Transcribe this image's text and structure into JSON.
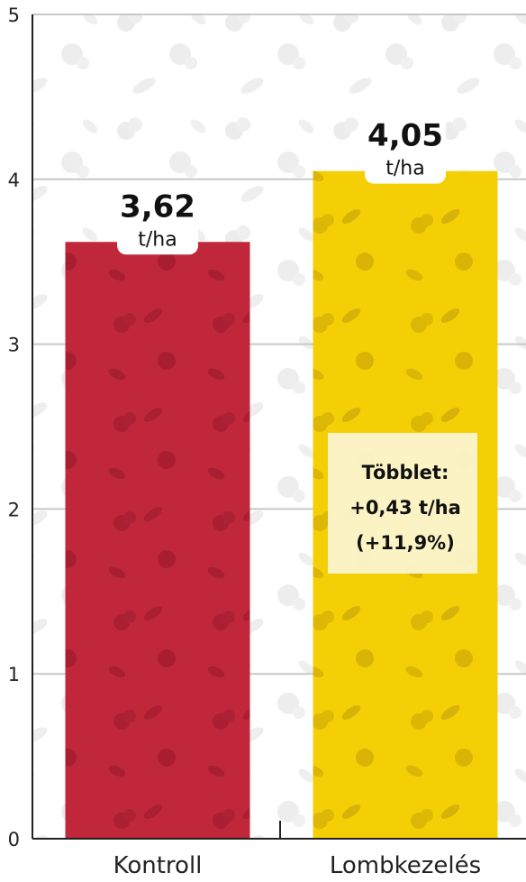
{
  "chart_data": {
    "type": "bar",
    "categories": [
      "Kontroll",
      "Lombkezelés"
    ],
    "values": [
      3.62,
      4.05
    ],
    "value_labels": [
      "3,62",
      "4,05"
    ],
    "unit": "t/ha",
    "ylim": [
      0,
      5
    ],
    "yticks": [
      "0",
      "1",
      "2",
      "3",
      "4",
      "5"
    ],
    "grid": true,
    "colors": [
      "#c0273a",
      "#f5cf05"
    ],
    "annotation": {
      "lines": [
        "Többlet:",
        "+0,43 t/ha",
        "(+11,9%)"
      ]
    }
  }
}
